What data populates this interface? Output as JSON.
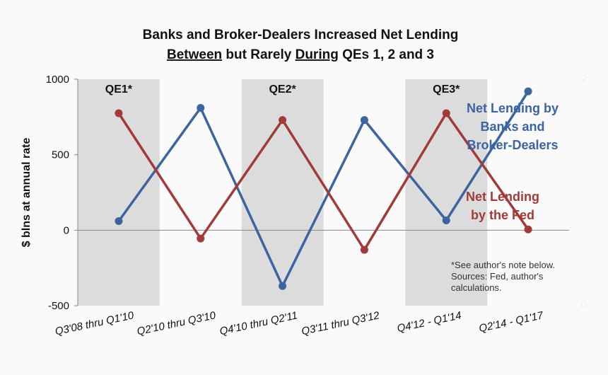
{
  "chart_data": {
    "type": "line",
    "title_line1": "Banks and Broker-Dealers Increased Net Lending",
    "title_line2": {
      "w1": "Between",
      "w2": " but Rarely ",
      "w3": "During",
      "w4": " QEs 1, 2 and 3"
    },
    "ylabel": "$ blns at annual rate",
    "ylim": [
      -500,
      1000
    ],
    "yticks": [
      "1000",
      "500",
      "0",
      "-500"
    ],
    "ytick_values": [
      1000,
      500,
      0,
      -500
    ],
    "secondary_ticks": [
      "2",
      "0"
    ],
    "categories": [
      "Q3'08 thru Q1'10",
      "Q2'10 thru Q3'10",
      "Q4'10 thru Q2'11",
      "Q3'11 thru Q3'12",
      "Q4'12 - Q1'14",
      "Q2'14 - Q1'17"
    ],
    "series": [
      {
        "name": "Net Lending by Banks and Broker-Dealers",
        "color": "#3b64a0",
        "values": [
          60,
          810,
          -370,
          730,
          65,
          920
        ]
      },
      {
        "name": "Net Lending by the Fed",
        "color": "#a23a3a",
        "values": [
          775,
          -55,
          730,
          -130,
          775,
          5
        ]
      }
    ],
    "shaded_bands": [
      {
        "label": "QE1*",
        "category_index": 0
      },
      {
        "label": "QE2*",
        "category_index": 2
      },
      {
        "label": "QE3*",
        "category_index": 4
      }
    ],
    "legend": {
      "blue_lines": [
        "Net Lending by",
        "Banks and",
        "Broker-Dealers"
      ],
      "red_lines": [
        "Net Lending",
        "by the Fed"
      ]
    },
    "note_lines": [
      "*See author's note below.",
      "Sources: Fed, author's",
      "calculations."
    ],
    "grid": false
  }
}
